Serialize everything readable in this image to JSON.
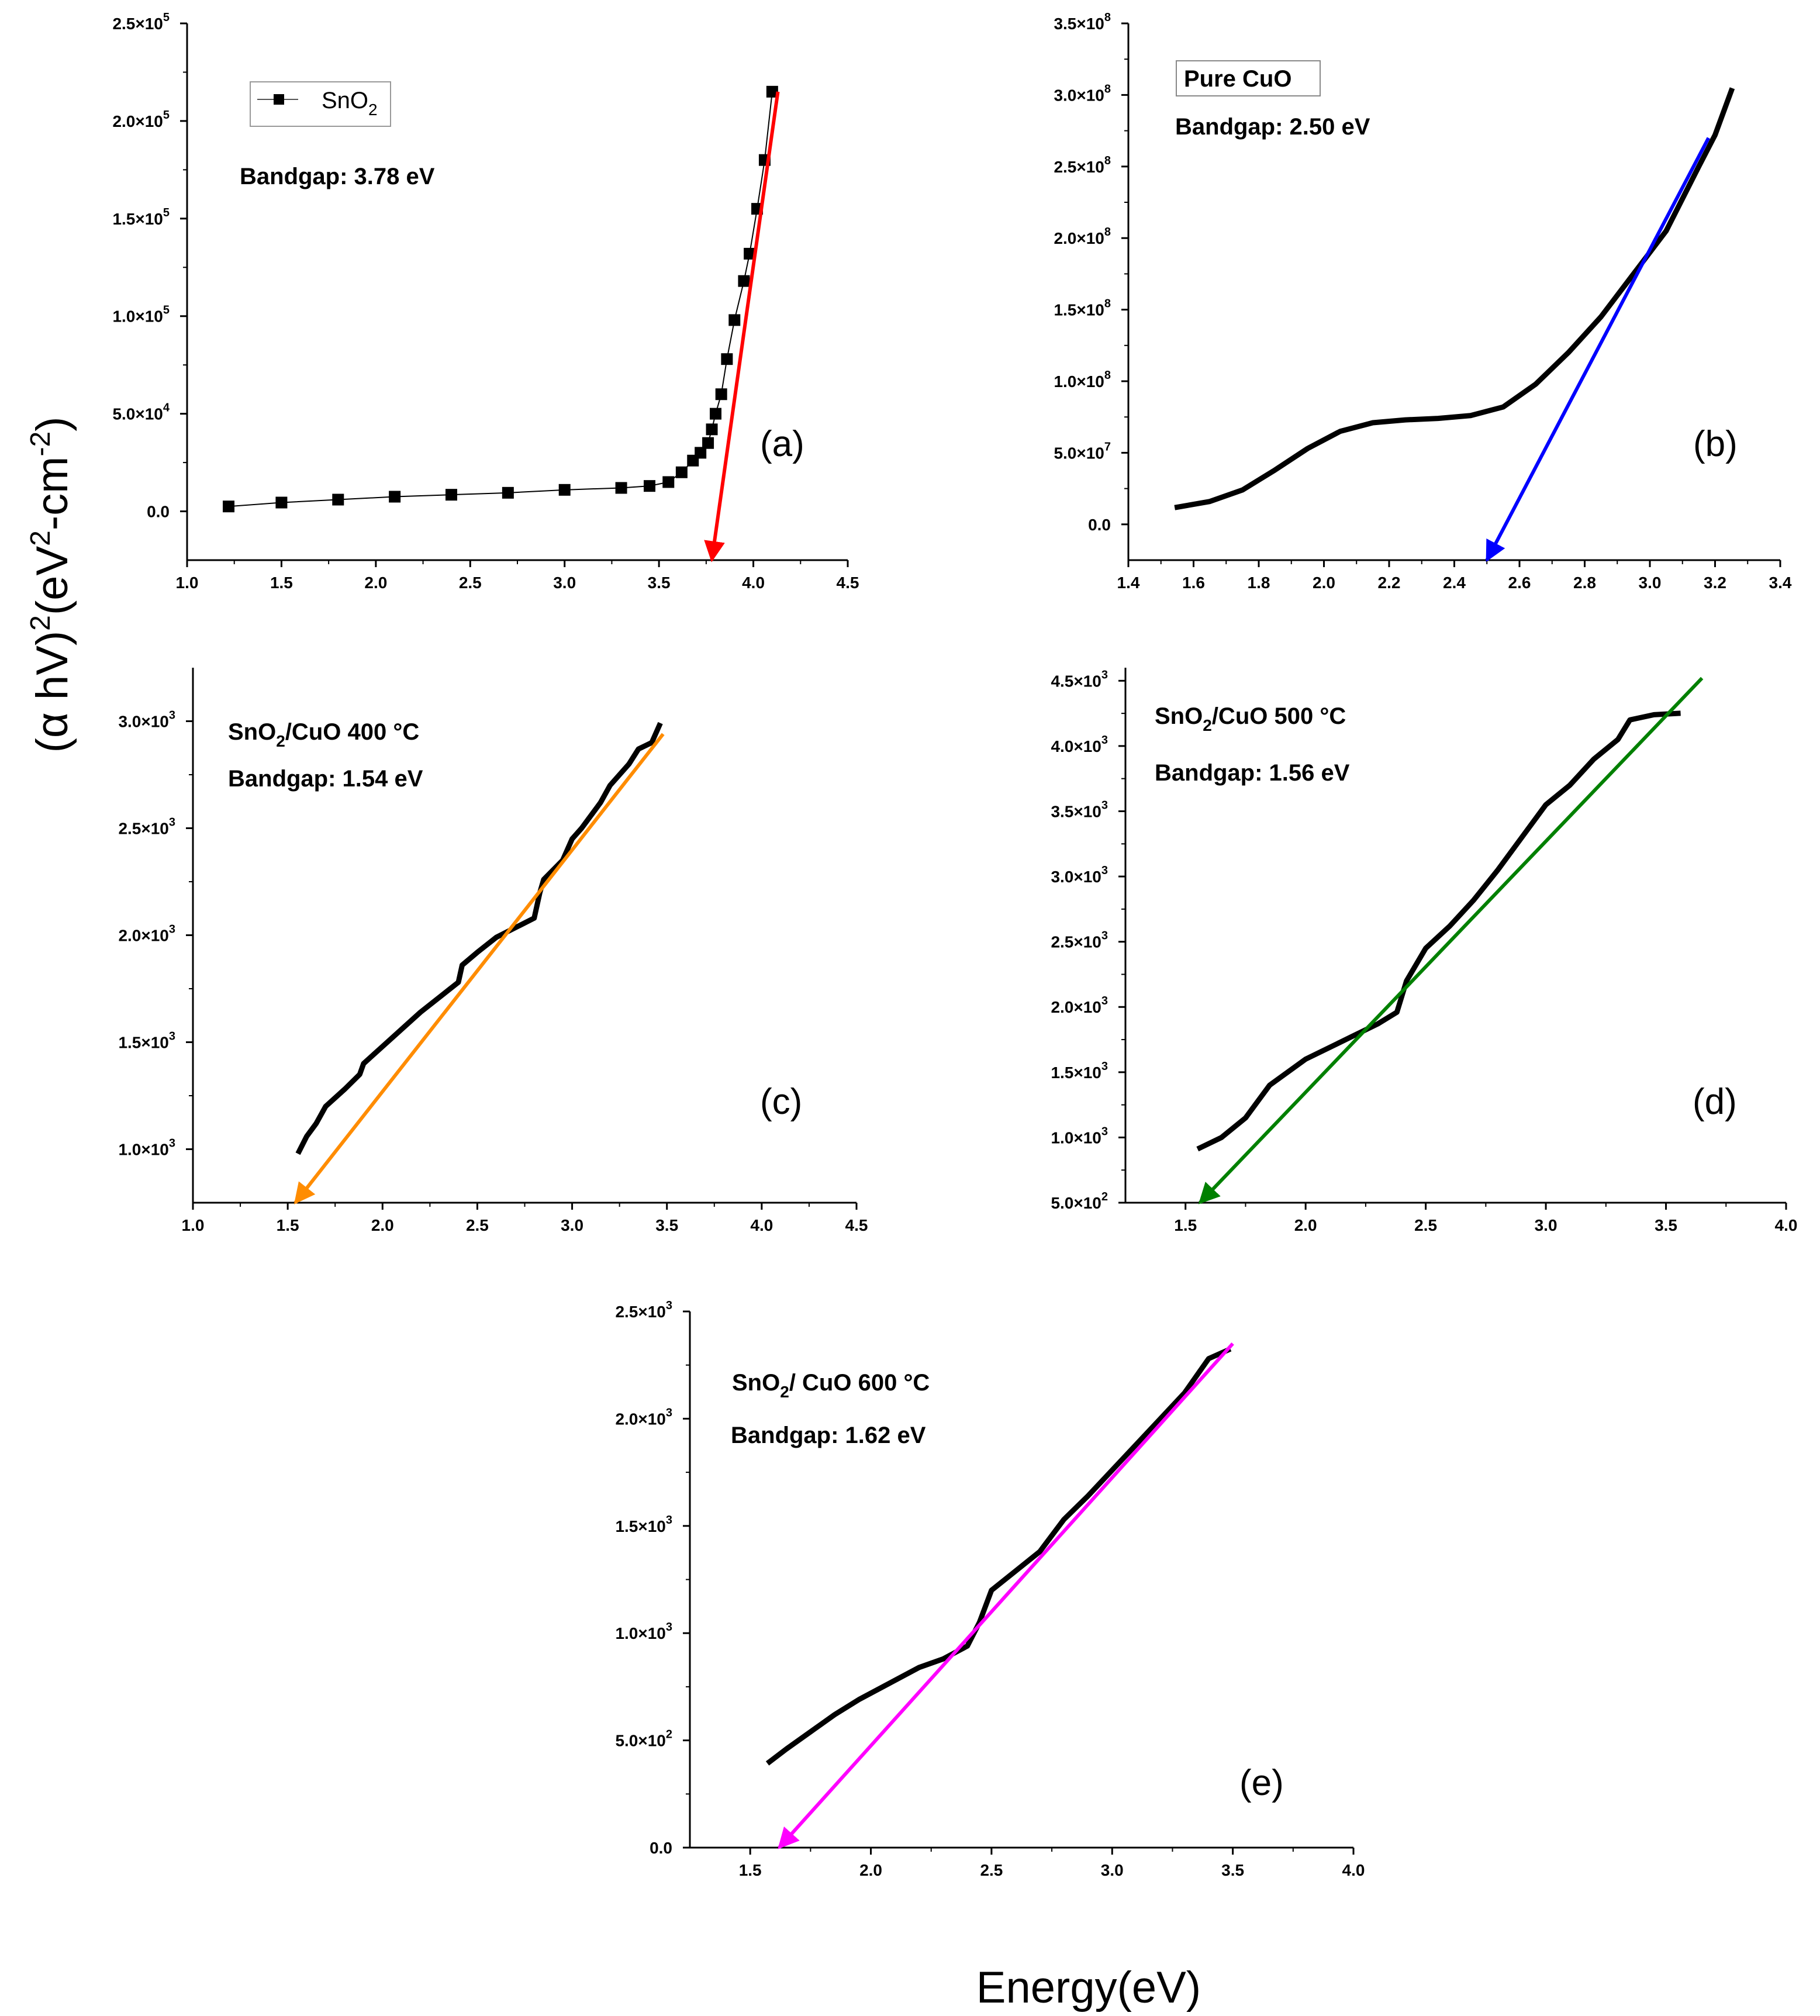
{
  "figure": {
    "ylabel_main": "(α hV)",
    "ylabel_unit": "(eV",
    "ylabel_unit_mid": "-cm",
    "ylabel_unit_end": ")",
    "ylabel_exp": "2",
    "ylabel_exp_neg": "-2",
    "xlabel": "Energy(eV)"
  },
  "chart_data": [
    {
      "id": "a",
      "type": "scatter",
      "panel_label": "(a)",
      "legend": {
        "name": "SnO",
        "sub": "2"
      },
      "annotation": {
        "bandgap": "Bandgap: 3.78 eV"
      },
      "xlim": [
        1.0,
        4.5
      ],
      "ylim": [
        -25000,
        250000
      ],
      "xticks": [
        "1.0",
        "1.5",
        "2.0",
        "2.5",
        "3.0",
        "3.5",
        "4.0",
        "4.5"
      ],
      "xtick_values": [
        1.0,
        1.5,
        2.0,
        2.5,
        3.0,
        3.5,
        4.0,
        4.5
      ],
      "yticks": [
        {
          "value": 0,
          "mant": "0.0",
          "exp": ""
        },
        {
          "value": 50000,
          "mant": "5.0×10",
          "exp": "4"
        },
        {
          "value": 100000,
          "mant": "1.0×10",
          "exp": "5"
        },
        {
          "value": 150000,
          "mant": "1.5×10",
          "exp": "5"
        },
        {
          "value": 200000,
          "mant": "2.0×10",
          "exp": "5"
        },
        {
          "value": 250000,
          "mant": "2.5×10",
          "exp": "5"
        }
      ],
      "series": [
        {
          "name": "SnO2",
          "marker": "square",
          "x": [
            1.22,
            1.5,
            1.8,
            2.1,
            2.4,
            2.7,
            3.0,
            3.3,
            3.45,
            3.55,
            3.62,
            3.68,
            3.72,
            3.76,
            3.78,
            3.8,
            3.83,
            3.86,
            3.9,
            3.95,
            3.98,
            4.02,
            4.06,
            4.1
          ],
          "y": [
            2500,
            4500,
            6000,
            7500,
            8500,
            9500,
            11000,
            12000,
            13000,
            15000,
            20000,
            26000,
            30000,
            35000,
            42000,
            50000,
            60000,
            78000,
            98000,
            118000,
            132000,
            155000,
            180000,
            215000
          ]
        }
      ],
      "fit": {
        "x": [
          4.13,
          3.78
        ],
        "y": [
          215000,
          -25000
        ],
        "color": "#ff0000"
      }
    },
    {
      "id": "b",
      "type": "line",
      "panel_label": "(b)",
      "legend": {
        "name": "Pure CuO"
      },
      "annotation": {
        "bandgap": "Bandgap: 2.50 eV"
      },
      "xlim": [
        1.4,
        3.4
      ],
      "ylim": [
        -25000000,
        350000000
      ],
      "xticks": [
        "1.4",
        "1.6",
        "1.8",
        "2.0",
        "2.2",
        "2.4",
        "2.6",
        "2.8",
        "3.0",
        "3.2",
        "3.4"
      ],
      "xtick_values": [
        1.4,
        1.6,
        1.8,
        2.0,
        2.2,
        2.4,
        2.6,
        2.8,
        3.0,
        3.2,
        3.4
      ],
      "yticks": [
        {
          "value": 0,
          "mant": "0.0",
          "exp": ""
        },
        {
          "value": 50000000,
          "mant": "5.0×10",
          "exp": "7"
        },
        {
          "value": 100000000,
          "mant": "1.0×10",
          "exp": "8"
        },
        {
          "value": 150000000,
          "mant": "1.5×10",
          "exp": "8"
        },
        {
          "value": 200000000,
          "mant": "2.0×10",
          "exp": "8"
        },
        {
          "value": 250000000,
          "mant": "2.5×10",
          "exp": "8"
        },
        {
          "value": 300000000,
          "mant": "3.0×10",
          "exp": "8"
        },
        {
          "value": 350000000,
          "mant": "3.5×10",
          "exp": "8"
        }
      ],
      "series": [
        {
          "name": "Pure CuO",
          "x": [
            1.55,
            1.65,
            1.75,
            1.85,
            1.95,
            2.05,
            2.15,
            2.25,
            2.35,
            2.45,
            2.55,
            2.65,
            2.75,
            2.85,
            2.95,
            3.05,
            3.15,
            3.2,
            3.25
          ],
          "y": [
            12000000,
            16000000,
            24000000,
            38000000,
            53000000,
            65000000,
            71000000,
            73000000,
            74000000,
            76000000,
            82000000,
            98000000,
            120000000,
            145000000,
            175000000,
            205000000,
            250000000,
            272000000,
            303000000
          ]
        }
      ],
      "fit": {
        "x": [
          3.18,
          2.5
        ],
        "y": [
          270000000,
          -25000000
        ],
        "color": "#0000ff"
      }
    },
    {
      "id": "c",
      "type": "line",
      "panel_label": "(c)",
      "annotation": {
        "sample": "SnO",
        "sample_sub": "2",
        "sample_rest": "/CuO 400 °C",
        "bandgap": "Bandgap: 1.54 eV"
      },
      "xlim": [
        1.0,
        4.5
      ],
      "ylim": [
        750,
        3250
      ],
      "xticks": [
        "1.0",
        "1.5",
        "2.0",
        "2.5",
        "3.0",
        "3.5",
        "4.0",
        "4.5"
      ],
      "xtick_values": [
        1.0,
        1.5,
        2.0,
        2.5,
        3.0,
        3.5,
        4.0,
        4.5
      ],
      "yticks": [
        {
          "value": 1000,
          "mant": "1.0×10",
          "exp": "3"
        },
        {
          "value": 1500,
          "mant": "1.5×10",
          "exp": "3"
        },
        {
          "value": 2000,
          "mant": "2.0×10",
          "exp": "3"
        },
        {
          "value": 2500,
          "mant": "2.5×10",
          "exp": "3"
        },
        {
          "value": 3000,
          "mant": "3.0×10",
          "exp": "3"
        }
      ],
      "series": [
        {
          "name": "SnO2/CuO 400",
          "x": [
            1.56,
            1.6,
            1.65,
            1.7,
            1.8,
            1.88,
            1.9,
            2.0,
            2.2,
            2.4,
            2.42,
            2.5,
            2.6,
            2.8,
            2.83,
            2.85,
            2.95,
            3.0,
            3.05,
            3.15,
            3.2,
            3.3,
            3.35,
            3.42,
            3.46
          ],
          "y": [
            990,
            1060,
            1120,
            1200,
            1280,
            1350,
            1400,
            1480,
            1640,
            1780,
            1860,
            1920,
            1990,
            2080,
            2200,
            2260,
            2350,
            2450,
            2500,
            2620,
            2700,
            2800,
            2870,
            2900,
            2980
          ]
        }
      ],
      "fit": {
        "x": [
          3.48,
          1.54
        ],
        "y": [
          2940,
          750
        ],
        "color": "#ff8c00"
      }
    },
    {
      "id": "d",
      "type": "line",
      "panel_label": "(d)",
      "annotation": {
        "sample": "SnO",
        "sample_sub": "2",
        "sample_rest": "/CuO 500 °C",
        "bandgap": "Bandgap: 1.56 eV"
      },
      "xlim": [
        1.25,
        4.0
      ],
      "ylim": [
        500,
        4600
      ],
      "xticks": [
        "1.5",
        "2.0",
        "2.5",
        "3.0",
        "3.5",
        "4.0"
      ],
      "xtick_values": [
        1.5,
        2.0,
        2.5,
        3.0,
        3.5,
        4.0
      ],
      "yticks": [
        {
          "value": 500,
          "mant": "5.0×10",
          "exp": "2"
        },
        {
          "value": 1000,
          "mant": "1.0×10",
          "exp": "3"
        },
        {
          "value": 1500,
          "mant": "1.5×10",
          "exp": "3"
        },
        {
          "value": 2000,
          "mant": "2.0×10",
          "exp": "3"
        },
        {
          "value": 2500,
          "mant": "2.5×10",
          "exp": "3"
        },
        {
          "value": 3000,
          "mant": "3.0×10",
          "exp": "3"
        },
        {
          "value": 3500,
          "mant": "3.5×10",
          "exp": "3"
        },
        {
          "value": 4000,
          "mant": "4.0×10",
          "exp": "3"
        },
        {
          "value": 4500,
          "mant": "4.5×10",
          "exp": "3"
        }
      ],
      "series": [
        {
          "name": "SnO2/CuO 500",
          "x": [
            1.56,
            1.65,
            1.75,
            1.85,
            2.0,
            2.2,
            2.3,
            2.38,
            2.42,
            2.5,
            2.6,
            2.7,
            2.8,
            2.9,
            3.0,
            3.1,
            3.2,
            3.3,
            3.35,
            3.45,
            3.55
          ],
          "y": [
            920,
            1000,
            1150,
            1400,
            1600,
            1780,
            1870,
            1960,
            2200,
            2450,
            2620,
            2820,
            3050,
            3300,
            3550,
            3700,
            3900,
            4050,
            4200,
            4240,
            4250
          ]
        }
      ],
      "fit": {
        "x": [
          3.65,
          1.56
        ],
        "y": [
          4520,
          500
        ],
        "color": "#008000"
      }
    },
    {
      "id": "e",
      "type": "line",
      "panel_label": "(e)",
      "annotation": {
        "sample": "SnO",
        "sample_sub": "2",
        "sample_rest": "/ CuO 600 °C",
        "bandgap": "Bandgap: 1.62 eV"
      },
      "xlim": [
        1.25,
        4.0
      ],
      "ylim": [
        0,
        2500
      ],
      "xticks": [
        "1.5",
        "2.0",
        "2.5",
        "3.0",
        "3.5",
        "4.0"
      ],
      "xtick_values": [
        1.5,
        2.0,
        2.5,
        3.0,
        3.5,
        4.0
      ],
      "yticks": [
        {
          "value": 0,
          "mant": "0.0",
          "exp": ""
        },
        {
          "value": 500,
          "mant": "5.0×10",
          "exp": "2"
        },
        {
          "value": 1000,
          "mant": "1.0×10",
          "exp": "3"
        },
        {
          "value": 1500,
          "mant": "1.5×10",
          "exp": "3"
        },
        {
          "value": 2000,
          "mant": "2.0×10",
          "exp": "3"
        },
        {
          "value": 2500,
          "mant": "2.5×10",
          "exp": "3"
        }
      ],
      "series": [
        {
          "name": "SnO2/CuO 600",
          "x": [
            1.58,
            1.65,
            1.75,
            1.85,
            1.95,
            2.1,
            2.2,
            2.3,
            2.4,
            2.45,
            2.5,
            2.6,
            2.7,
            2.8,
            2.9,
            3.0,
            3.1,
            3.2,
            3.3,
            3.4,
            3.48
          ],
          "y": [
            400,
            460,
            540,
            620,
            690,
            780,
            840,
            880,
            940,
            1050,
            1200,
            1290,
            1380,
            1530,
            1640,
            1760,
            1880,
            2000,
            2120,
            2280,
            2320
          ]
        }
      ],
      "fit": {
        "x": [
          3.5,
          1.62
        ],
        "y": [
          2350,
          0
        ],
        "color": "#ff00ff"
      }
    }
  ]
}
